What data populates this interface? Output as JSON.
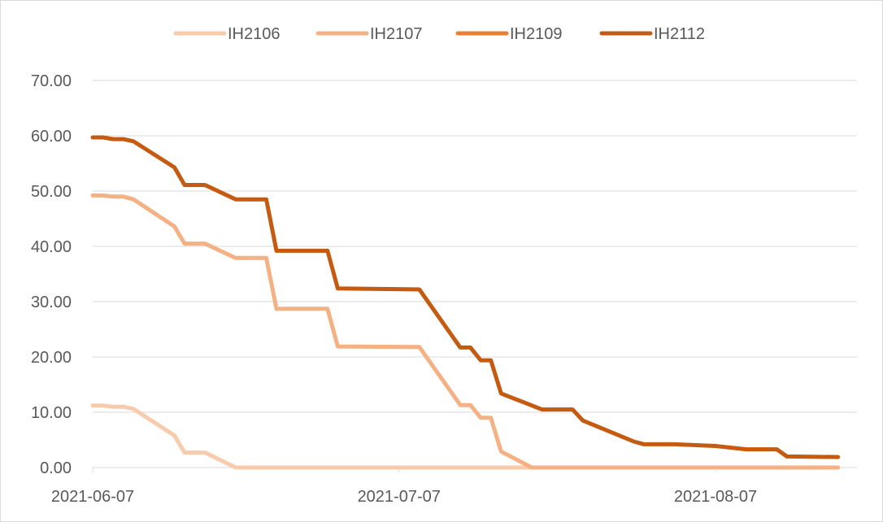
{
  "chart_data": {
    "type": "line",
    "title": "",
    "xlabel": "",
    "ylabel": "",
    "ylim": [
      0,
      70
    ],
    "yticks": [
      "0.00",
      "10.00",
      "20.00",
      "30.00",
      "40.00",
      "50.00",
      "60.00",
      "70.00"
    ],
    "xticks": [
      "2021-06-07",
      "2021-07-07",
      "2021-08-07"
    ],
    "xlim": [
      "2021-06-07",
      "2021-08-19"
    ],
    "grid": "horizontal",
    "legend_position": "top",
    "series": [
      {
        "name": "IH2106",
        "color": "#f8cbad",
        "points": [
          [
            "2021-06-07",
            11.2
          ],
          [
            "2021-06-08",
            11.2
          ],
          [
            "2021-06-09",
            11.0
          ],
          [
            "2021-06-10",
            11.0
          ],
          [
            "2021-06-11",
            10.6
          ],
          [
            "2021-06-15",
            5.8
          ],
          [
            "2021-06-16",
            2.7
          ],
          [
            "2021-06-18",
            2.7
          ],
          [
            "2021-06-21",
            0.0
          ],
          [
            "2021-07-21",
            0.0
          ]
        ]
      },
      {
        "name": "IH2107",
        "color": "#f4b183",
        "points": [
          [
            "2021-06-07",
            49.2
          ],
          [
            "2021-06-08",
            49.2
          ],
          [
            "2021-06-09",
            49.0
          ],
          [
            "2021-06-10",
            49.0
          ],
          [
            "2021-06-11",
            48.5
          ],
          [
            "2021-06-15",
            43.6
          ],
          [
            "2021-06-16",
            40.5
          ],
          [
            "2021-06-18",
            40.5
          ],
          [
            "2021-06-21",
            37.9
          ],
          [
            "2021-06-24",
            37.9
          ],
          [
            "2021-06-25",
            28.7
          ],
          [
            "2021-06-30",
            28.7
          ],
          [
            "2021-07-01",
            21.9
          ],
          [
            "2021-07-09",
            21.8
          ],
          [
            "2021-07-13",
            11.3
          ],
          [
            "2021-07-14",
            11.3
          ],
          [
            "2021-07-15",
            9.0
          ],
          [
            "2021-07-16",
            9.0
          ],
          [
            "2021-07-17",
            2.9
          ],
          [
            "2021-07-20",
            0.0
          ],
          [
            "2021-08-19",
            0.0
          ]
        ]
      },
      {
        "name": "IH2109",
        "color": "#ed7d31",
        "points": []
      },
      {
        "name": "IH2112",
        "color": "#c55a11",
        "points": [
          [
            "2021-06-07",
            59.7
          ],
          [
            "2021-06-08",
            59.7
          ],
          [
            "2021-06-09",
            59.4
          ],
          [
            "2021-06-10",
            59.4
          ],
          [
            "2021-06-11",
            59.0
          ],
          [
            "2021-06-15",
            54.3
          ],
          [
            "2021-06-16",
            51.1
          ],
          [
            "2021-06-18",
            51.1
          ],
          [
            "2021-06-21",
            48.5
          ],
          [
            "2021-06-24",
            48.5
          ],
          [
            "2021-06-25",
            39.2
          ],
          [
            "2021-06-30",
            39.2
          ],
          [
            "2021-07-01",
            32.4
          ],
          [
            "2021-07-09",
            32.2
          ],
          [
            "2021-07-13",
            21.7
          ],
          [
            "2021-07-14",
            21.7
          ],
          [
            "2021-07-15",
            19.4
          ],
          [
            "2021-07-16",
            19.4
          ],
          [
            "2021-07-17",
            13.4
          ],
          [
            "2021-07-21",
            10.5
          ],
          [
            "2021-07-24",
            10.5
          ],
          [
            "2021-07-25",
            8.5
          ],
          [
            "2021-07-30",
            4.7
          ],
          [
            "2021-07-31",
            4.2
          ],
          [
            "2021-08-03",
            4.2
          ],
          [
            "2021-08-07",
            3.9
          ],
          [
            "2021-08-07",
            3.9
          ],
          [
            "2021-08-10",
            3.3
          ],
          [
            "2021-08-13",
            3.3
          ],
          [
            "2021-08-14",
            2.0
          ],
          [
            "2021-08-19",
            1.9
          ]
        ]
      }
    ]
  }
}
